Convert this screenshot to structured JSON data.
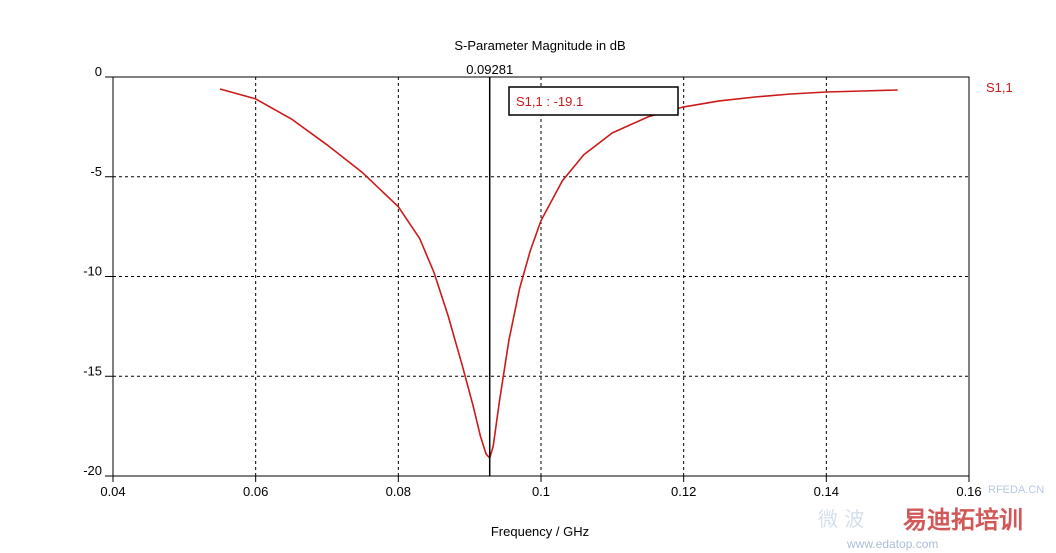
{
  "chart_data": {
    "type": "line",
    "title": "S-Parameter Magnitude in dB",
    "xlabel": "Frequency / GHz",
    "ylabel": "",
    "xlim": [
      0.04,
      0.16
    ],
    "ylim": [
      -20,
      0
    ],
    "x_ticks": [
      0.04,
      0.06,
      0.08,
      0.1,
      0.12,
      0.14,
      0.16
    ],
    "x_tick_labels": [
      "0.04",
      "0.06",
      "0.08",
      "0.1",
      "0.12",
      "0.14",
      "0.16"
    ],
    "y_ticks": [
      0,
      -5,
      -10,
      -15,
      -20
    ],
    "y_tick_labels": [
      "0",
      "-5",
      "-10",
      "-15",
      "-20"
    ],
    "grid": true,
    "legend_position": "right",
    "series": [
      {
        "name": "S1,1",
        "color": "#cc1a1a",
        "x": [
          0.055,
          0.06,
          0.065,
          0.07,
          0.075,
          0.08,
          0.083,
          0.085,
          0.087,
          0.089,
          0.0905,
          0.0915,
          0.0923,
          0.09281,
          0.0933,
          0.0942,
          0.0955,
          0.097,
          0.0985,
          0.1,
          0.103,
          0.106,
          0.11,
          0.115,
          0.12,
          0.125,
          0.13,
          0.135,
          0.14,
          0.145,
          0.15
        ],
        "y": [
          -0.6,
          -1.1,
          -2.1,
          -3.4,
          -4.8,
          -6.5,
          -8.1,
          -9.8,
          -12.0,
          -14.5,
          -16.5,
          -18.0,
          -18.9,
          -19.1,
          -18.5,
          -16.2,
          -13.2,
          -10.6,
          -8.7,
          -7.2,
          -5.2,
          -3.9,
          -2.8,
          -2.0,
          -1.5,
          -1.2,
          -1.0,
          -0.85,
          -0.75,
          -0.7,
          -0.65
        ]
      }
    ],
    "marker": {
      "x_label": "0.09281",
      "x": 0.09281,
      "readout": "S1,1 : -19.1"
    }
  },
  "colors": {
    "curve": "#cc1a1a",
    "axis": "#000000",
    "grid": "#000000",
    "legend": "#cc1a1a"
  },
  "watermark": {
    "url": "www.edatop.com",
    "brand": "易迪拓培训",
    "site": "RFEDA.CN",
    "chinese_left": "微 波"
  }
}
